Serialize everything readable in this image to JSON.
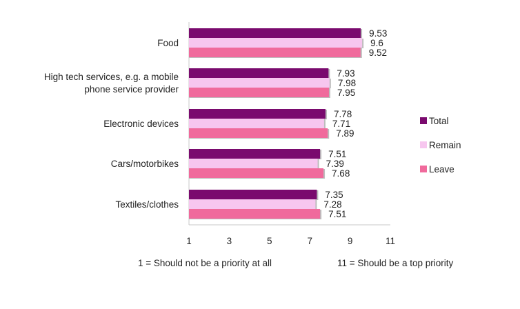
{
  "chart_data": {
    "type": "bar",
    "orientation": "horizontal",
    "categories": [
      "Food",
      "High tech services, e.g. a mobile phone service provider",
      "Electronic devices",
      "Cars/motorbikes",
      "Textiles/clothes"
    ],
    "series": [
      {
        "name": "Total",
        "color": "#7a0a6e",
        "values": [
          9.53,
          7.93,
          7.78,
          7.51,
          7.35
        ]
      },
      {
        "name": "Remain",
        "color": "#f7c6ef",
        "values": [
          9.6,
          7.98,
          7.71,
          7.39,
          7.28
        ]
      },
      {
        "name": "Leave",
        "color": "#f06a9c",
        "values": [
          9.52,
          7.95,
          7.89,
          7.68,
          7.51
        ]
      }
    ],
    "value_labels": [
      [
        "9.53",
        "7.93",
        "7.78",
        "7.51",
        "7.35"
      ],
      [
        "9.6",
        "7.98",
        "7.71",
        "7.39",
        "7.28"
      ],
      [
        "9.52",
        "7.95",
        "7.89",
        "7.68",
        "7.51"
      ]
    ],
    "xlim": [
      1,
      11
    ],
    "xticks": [
      "1",
      "3",
      "5",
      "7",
      "9",
      "11"
    ],
    "grid": false,
    "legend_position": "right",
    "notes": {
      "left": "1 = Should not be a priority at all",
      "right": "11 = Should be a top priority"
    }
  }
}
